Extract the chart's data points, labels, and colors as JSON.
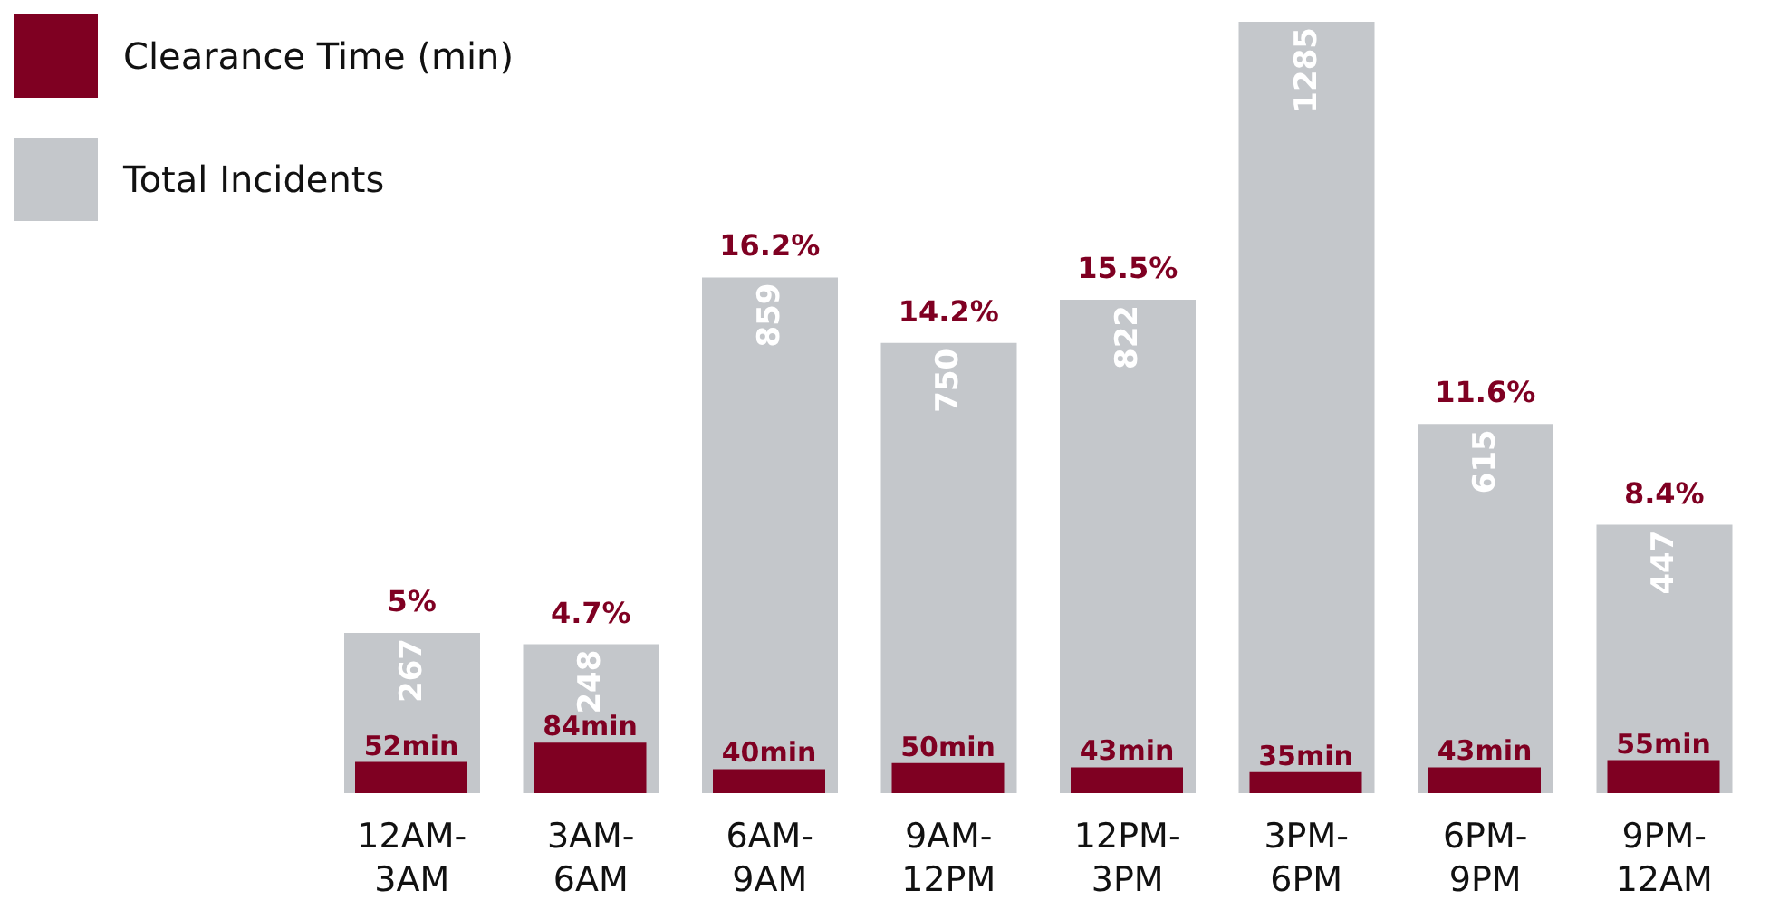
{
  "chart_data": {
    "type": "bar",
    "categories": [
      "12AM-3AM",
      "3AM-6AM",
      "6AM-9AM",
      "9AM-12PM",
      "12PM-3PM",
      "3PM-6PM",
      "6PM-9PM",
      "9PM-12AM"
    ],
    "series": [
      {
        "name": "Clearance Time (min)",
        "color": "#7f0022",
        "values": [
          52,
          84,
          40,
          50,
          43,
          35,
          43,
          55
        ],
        "value_labels": [
          "52min",
          "84min",
          "40min",
          "50min",
          "43min",
          "35min",
          "43min",
          "55min"
        ]
      },
      {
        "name": "Total Incidents",
        "color": "#c4c7cb",
        "values": [
          267,
          248,
          859,
          750,
          822,
          1285,
          615,
          447
        ],
        "value_labels": [
          "267",
          "248",
          "859",
          "750",
          "822",
          "1285",
          "615",
          "447"
        ]
      }
    ],
    "tick_labels": "x",
    "legend": "top left",
    "annotations": [
      {
        "text": "5%",
        "x": "12AM-3AM",
        "y": 267
      },
      {
        "text": "4.7%",
        "x": "3AM-6AM",
        "y": 248
      },
      {
        "text": "16.2%",
        "x": "6AM-9AM",
        "y": 859
      },
      {
        "text": "14.2%",
        "x": "9AM-12PM",
        "y": 750
      },
      {
        "text": "15.5%",
        "x": "12PM-3PM",
        "y": 822
      },
      {
        "text": "11.6%",
        "x": "6PM-9PM",
        "y": 615
      },
      {
        "text": "8.4%",
        "x": "9PM-12AM",
        "y": 447
      }
    ]
  }
}
